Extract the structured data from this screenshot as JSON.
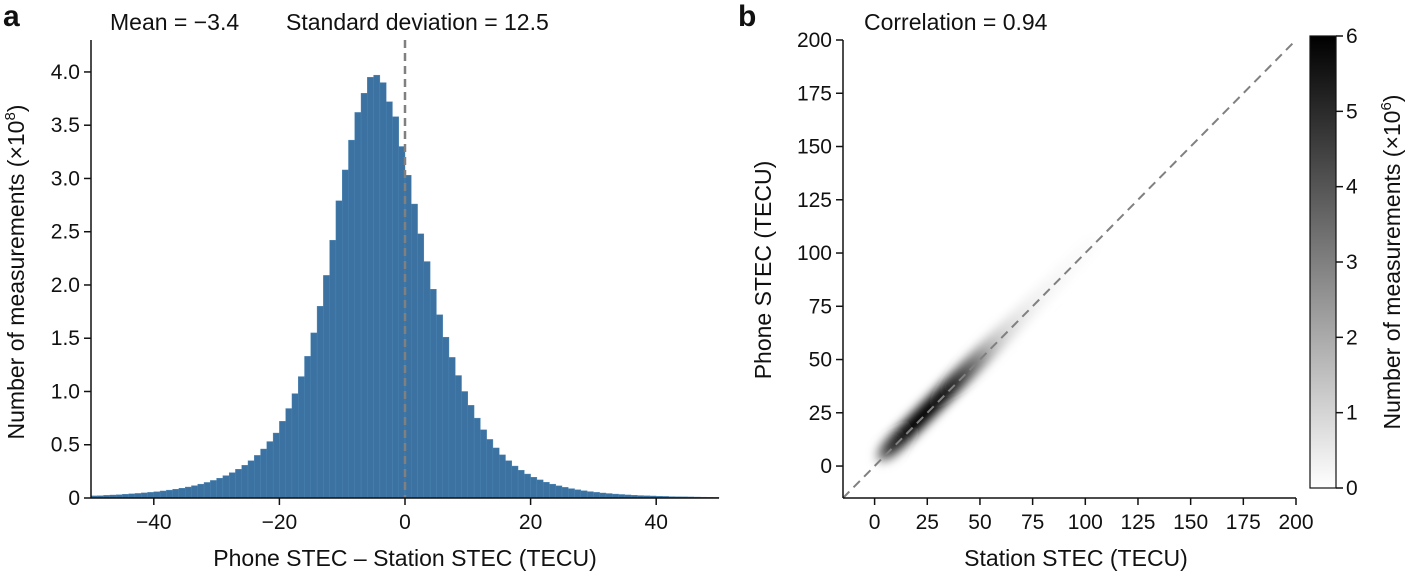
{
  "chart_data": [
    {
      "type": "bar",
      "panel_label": "a",
      "title_parts": [
        "Mean = −3.4",
        "Standard deviation = 12.5"
      ],
      "xlabel": "Phone STEC – Station STEC (TECU)",
      "ylabel": "Number of measurements (×10",
      "ylabel_exp": "8",
      "ylabel_close": ")",
      "xlim": [
        -50,
        50
      ],
      "ylim": [
        0,
        4.3
      ],
      "xticks": [
        -40,
        -20,
        0,
        20,
        40
      ],
      "xtick_labels": [
        "−40",
        "−20",
        "0",
        "20",
        "40"
      ],
      "yticks": [
        0,
        0.5,
        1.0,
        1.5,
        2.0,
        2.5,
        3.0,
        3.5,
        4.0
      ],
      "ytick_labels": [
        "0",
        "0.5",
        "1.0",
        "1.5",
        "2.0",
        "2.5",
        "3.0",
        "3.5",
        "4.0"
      ],
      "bin_width": 1,
      "bin_start": -50,
      "bar_color": "#3b72a1",
      "reference_line_x": 0,
      "values": [
        0.02,
        0.022,
        0.025,
        0.028,
        0.031,
        0.035,
        0.039,
        0.043,
        0.048,
        0.053,
        0.059,
        0.066,
        0.074,
        0.082,
        0.092,
        0.103,
        0.116,
        0.13,
        0.146,
        0.165,
        0.186,
        0.21,
        0.238,
        0.27,
        0.307,
        0.35,
        0.4,
        0.46,
        0.53,
        0.61,
        0.72,
        0.84,
        0.98,
        1.14,
        1.33,
        1.55,
        1.8,
        2.09,
        2.42,
        2.79,
        3.08,
        3.36,
        3.62,
        3.8,
        3.95,
        3.97,
        3.9,
        3.72,
        3.58,
        3.3,
        3.03,
        2.76,
        2.48,
        2.22,
        1.96,
        1.72,
        1.51,
        1.32,
        1.15,
        1.0,
        0.87,
        0.75,
        0.64,
        0.55,
        0.47,
        0.405,
        0.35,
        0.3,
        0.26,
        0.225,
        0.195,
        0.17,
        0.148,
        0.13,
        0.114,
        0.1,
        0.088,
        0.077,
        0.068,
        0.06,
        0.053,
        0.047,
        0.042,
        0.037,
        0.033,
        0.029,
        0.026,
        0.023,
        0.021,
        0.019,
        0.017,
        0.015,
        0.013,
        0.012,
        0.011,
        0.01,
        0.009,
        0.008,
        0.007,
        0.006
      ]
    },
    {
      "type": "heatmap",
      "panel_label": "b",
      "title": "Correlation = 0.94",
      "xlabel": "Station STEC (TECU)",
      "ylabel": "Phone STEC (TECU)",
      "xlim": [
        -15,
        200
      ],
      "ylim": [
        -15,
        200
      ],
      "xticks": [
        0,
        25,
        50,
        75,
        100,
        125,
        150,
        175,
        200
      ],
      "xtick_labels": [
        "0",
        "25",
        "50",
        "75",
        "100",
        "125",
        "150",
        "175",
        "200"
      ],
      "yticks": [
        0,
        25,
        50,
        75,
        100,
        125,
        150,
        175,
        200
      ],
      "ytick_labels": [
        "0",
        "25",
        "50",
        "75",
        "100",
        "125",
        "150",
        "175",
        "200"
      ],
      "reference_line": "y = x",
      "density_ridge": [
        {
          "x": 8,
          "intensity": 0.45
        },
        {
          "x": 12,
          "intensity": 0.8
        },
        {
          "x": 20,
          "intensity": 0.95
        },
        {
          "x": 28,
          "intensity": 1.0
        },
        {
          "x": 36,
          "intensity": 0.95
        },
        {
          "x": 44,
          "intensity": 0.82
        },
        {
          "x": 52,
          "intensity": 0.55
        },
        {
          "x": 60,
          "intensity": 0.25
        },
        {
          "x": 68,
          "intensity": 0.12
        },
        {
          "x": 78,
          "intensity": 0.06
        },
        {
          "x": 90,
          "intensity": 0.03
        },
        {
          "x": 105,
          "intensity": 0.015
        }
      ],
      "colorbar": {
        "label": "Number of measurements (×10",
        "label_exp": "6",
        "label_close": ")",
        "range": [
          0,
          6
        ],
        "ticks": [
          0,
          1,
          2,
          3,
          4,
          5,
          6
        ],
        "tick_labels": [
          "0",
          "1",
          "2",
          "3",
          "4",
          "5",
          "6"
        ]
      }
    }
  ]
}
